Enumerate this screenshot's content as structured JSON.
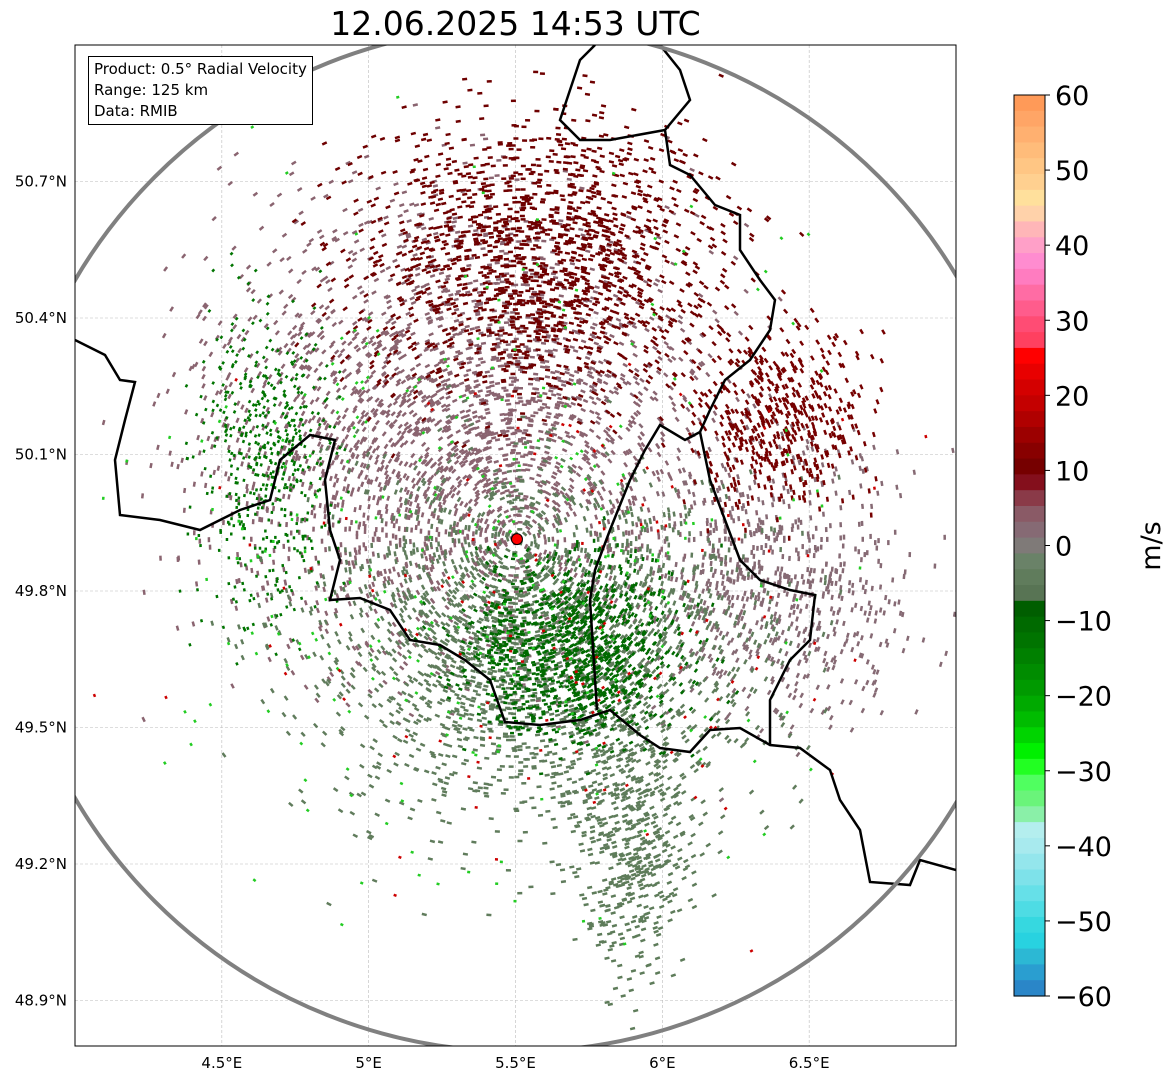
{
  "title": "12.06.2025 14:53 UTC",
  "info_box": {
    "product": "Product: 0.5° Radial Velocity",
    "range": "Range: 125 km",
    "data": "Data: RMIB"
  },
  "map": {
    "lon_range": [
      4.0,
      7.0
    ],
    "lat_range": [
      48.8,
      51.0
    ],
    "lon_ticks": [
      {
        "v": 4.5,
        "label": "4.5°E"
      },
      {
        "v": 5.0,
        "label": "5°E"
      },
      {
        "v": 5.5,
        "label": "5.5°E"
      },
      {
        "v": 6.0,
        "label": "6°E"
      },
      {
        "v": 6.5,
        "label": "6.5°E"
      }
    ],
    "lat_ticks": [
      {
        "v": 50.7,
        "label": "50.7°N"
      },
      {
        "v": 50.4,
        "label": "50.4°N"
      },
      {
        "v": 50.1,
        "label": "50.1°N"
      },
      {
        "v": 49.8,
        "label": "49.8°N"
      },
      {
        "v": 49.5,
        "label": "49.5°N"
      },
      {
        "v": 49.2,
        "label": "49.2°N"
      },
      {
        "v": 48.9,
        "label": "48.9°N"
      }
    ],
    "radar_site": {
      "lon": 5.505,
      "lat": 49.914,
      "range_km": 125
    },
    "colors": {
      "radar_marker": "#ff0000",
      "range_ring": "#808080",
      "border": "#000000"
    }
  },
  "colorbar": {
    "label": "m/s",
    "min": -60,
    "max": 60,
    "ticks": [
      {
        "v": 60,
        "label": "60"
      },
      {
        "v": 50,
        "label": "50"
      },
      {
        "v": 40,
        "label": "40"
      },
      {
        "v": 30,
        "label": "30"
      },
      {
        "v": 20,
        "label": "20"
      },
      {
        "v": 10,
        "label": "10"
      },
      {
        "v": 0,
        "label": "0"
      },
      {
        "v": -10,
        "label": "−10"
      },
      {
        "v": -20,
        "label": "−20"
      },
      {
        "v": -30,
        "label": "−30"
      },
      {
        "v": -40,
        "label": "−40"
      },
      {
        "v": -50,
        "label": "−50"
      },
      {
        "v": -60,
        "label": "−60"
      }
    ],
    "colors_top_to_bottom": [
      "#ff9a58",
      "#ffa566",
      "#ffb070",
      "#ffbc7a",
      "#ffc684",
      "#ffd090",
      "#ffe09c",
      "#ffd2aa",
      "#ffb6b8",
      "#ffa0c8",
      "#ff8cd0",
      "#ff7cc0",
      "#ff6ca4",
      "#ff5c8c",
      "#ff4c74",
      "#ff4060",
      "#ff0000",
      "#e80000",
      "#d40000",
      "#c40000",
      "#b00000",
      "#9c0000",
      "#880000",
      "#760000",
      "#840f1c",
      "#8a3a48",
      "#8a5a66",
      "#866a74",
      "#7f7a78",
      "#6a8268",
      "#607c5c",
      "#587454",
      "#005e00",
      "#006a00",
      "#007400",
      "#008000",
      "#008c00",
      "#009a00",
      "#00aa00",
      "#00bc00",
      "#00d400",
      "#00f000",
      "#22ff22",
      "#50ff60",
      "#6af47a",
      "#8af0a8",
      "#b4eeee",
      "#a8eaee",
      "#94e6ec",
      "#7ee2ea",
      "#66e0e8",
      "#4edce4",
      "#36d8e0",
      "#28d2e0",
      "#2cb8d4",
      "#2a9ed0",
      "#2a86c8"
    ]
  }
}
